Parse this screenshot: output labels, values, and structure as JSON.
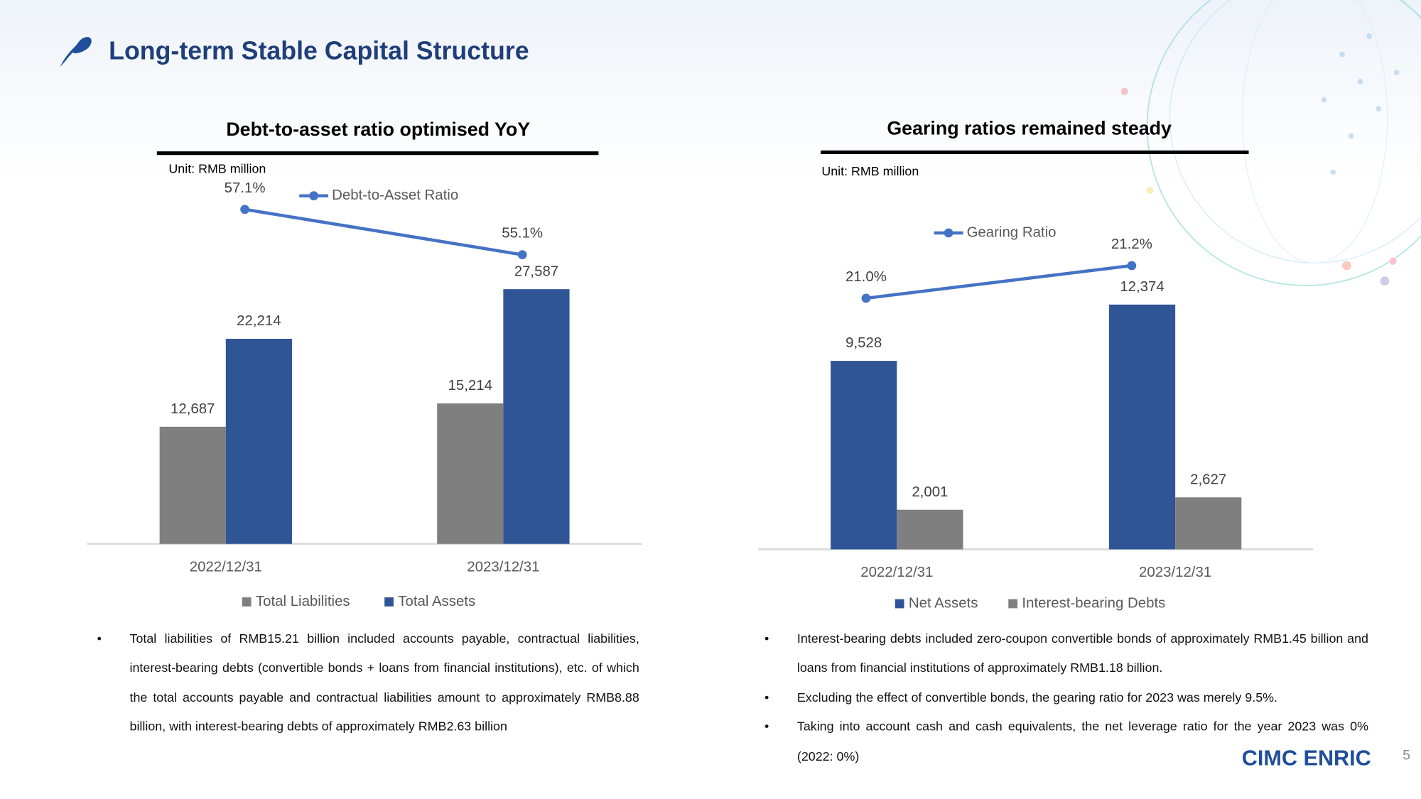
{
  "slide": {
    "title": "Long-term Stable Capital Structure",
    "logo": "CIMC ENRIC",
    "page_number": "5"
  },
  "chart_data": [
    {
      "type": "bar",
      "title": "Debt-to-asset ratio optimised YoY",
      "subtitle": "Unit: RMB million",
      "categories": [
        "2022/12/31",
        "2023/12/31"
      ],
      "series": [
        {
          "name": "Total Liabilities",
          "color": "#7f7f7f",
          "values": [
            12687,
            15214
          ],
          "value_labels": [
            "12,687",
            "15,214"
          ]
        },
        {
          "name": "Total Assets",
          "color": "#2f5597",
          "values": [
            22214,
            27587
          ],
          "value_labels": [
            "22,214",
            "27,587"
          ]
        },
        {
          "name": "Debt-to-Asset Ratio",
          "type": "line",
          "color": "#4472c4",
          "values": [
            57.1,
            55.1
          ],
          "value_labels": [
            "57.1%",
            "55.1%"
          ]
        }
      ]
    },
    {
      "type": "bar",
      "title": "Gearing ratios remained steady",
      "subtitle": "Unit: RMB million",
      "categories": [
        "2022/12/31",
        "2023/12/31"
      ],
      "series": [
        {
          "name": "Net Assets",
          "color": "#2f5597",
          "values": [
            9528,
            12374
          ],
          "value_labels": [
            "9,528",
            "12,374"
          ]
        },
        {
          "name": "Interest-bearing Debts",
          "color": "#7f7f7f",
          "values": [
            2001,
            2627
          ],
          "value_labels": [
            "2,001",
            "2,627"
          ]
        },
        {
          "name": "Gearing Ratio",
          "type": "line",
          "color": "#4472c4",
          "values": [
            21.0,
            21.2
          ],
          "value_labels": [
            "21.0%",
            "21.2%"
          ]
        }
      ]
    }
  ],
  "notes": [
    {
      "bullets": [
        "Total liabilities of RMB15.21 billion included accounts payable, contractual liabilities, interest-bearing debts (convertible bonds + loans from financial institutions), etc. of which the total accounts payable and contractual liabilities amount to approximately RMB8.88 billion, with interest-bearing debts of approximately RMB2.63 billion"
      ]
    },
    {
      "bullets": [
        "Interest-bearing debts included zero-coupon convertible bonds of approximately RMB1.45 billion and loans from financial institutions of approximately RMB1.18 billion.",
        "Excluding the effect of convertible bonds, the gearing ratio for 2023 was merely 9.5%.",
        "Taking into account cash and cash equivalents, the net leverage ratio for the year 2023 was 0% (2022: 0%)"
      ]
    }
  ]
}
